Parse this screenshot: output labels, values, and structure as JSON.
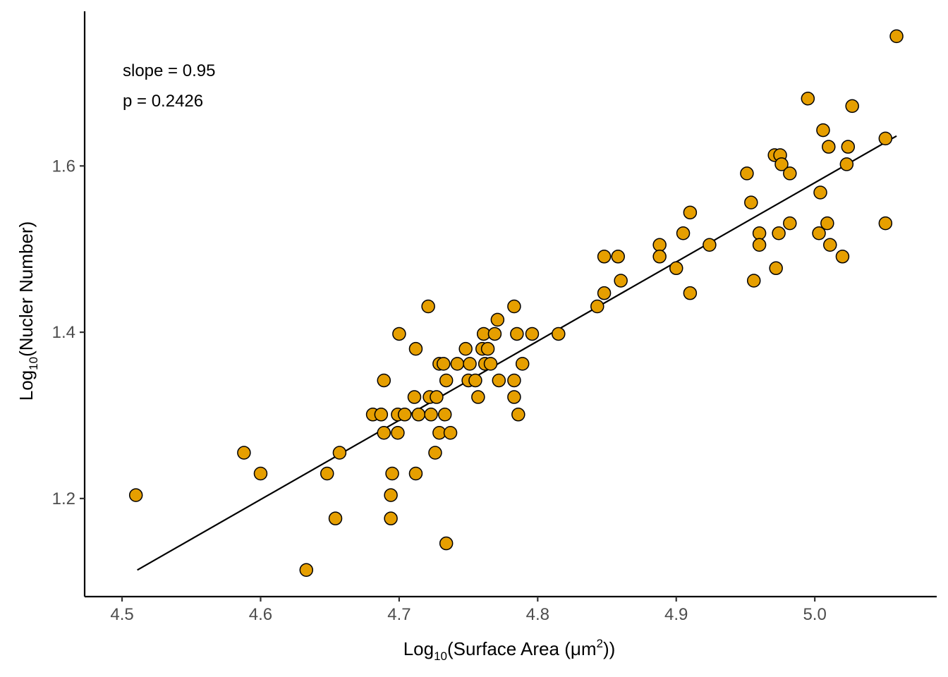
{
  "chart_data": {
    "type": "scatter",
    "title": "",
    "xlabel": {
      "pre": "Log",
      "sub": "10",
      "mid": "(Surface Area (μm",
      "sup": "2",
      "post": "))"
    },
    "ylabel": {
      "pre": "Log",
      "sub": "10",
      "post": "(Nucler Number)"
    },
    "xlim": [
      4.473,
      5.088
    ],
    "ylim": [
      1.082,
      1.786
    ],
    "xticks": [
      4.5,
      4.6,
      4.7,
      4.8,
      4.9,
      5.0
    ],
    "xtick_labels": [
      "4.5",
      "4.6",
      "4.7",
      "4.8",
      "4.9",
      "5.0"
    ],
    "yticks": [
      1.2,
      1.4,
      1.6
    ],
    "ytick_labels": [
      "1.2",
      "1.4",
      "1.6"
    ],
    "grid": false,
    "point_color": "#E69F00",
    "annotations": [
      "slope = 0.95",
      "p = 0.2426"
    ],
    "fit_line": {
      "x": [
        4.511,
        5.059
      ],
      "y": [
        1.114,
        1.636
      ]
    },
    "points": [
      [
        4.51,
        1.204
      ],
      [
        4.588,
        1.255
      ],
      [
        4.6,
        1.23
      ],
      [
        4.633,
        1.114
      ],
      [
        4.648,
        1.23
      ],
      [
        4.654,
        1.176
      ],
      [
        4.657,
        1.255
      ],
      [
        4.681,
        1.301
      ],
      [
        4.687,
        1.301
      ],
      [
        4.689,
        1.342
      ],
      [
        4.689,
        1.279
      ],
      [
        4.694,
        1.204
      ],
      [
        4.694,
        1.176
      ],
      [
        4.695,
        1.23
      ],
      [
        4.699,
        1.279
      ],
      [
        4.699,
        1.301
      ],
      [
        4.7,
        1.398
      ],
      [
        4.704,
        1.301
      ],
      [
        4.711,
        1.322
      ],
      [
        4.712,
        1.38
      ],
      [
        4.712,
        1.23
      ],
      [
        4.714,
        1.301
      ],
      [
        4.721,
        1.431
      ],
      [
        4.722,
        1.322
      ],
      [
        4.723,
        1.301
      ],
      [
        4.726,
        1.255
      ],
      [
        4.727,
        1.322
      ],
      [
        4.729,
        1.362
      ],
      [
        4.729,
        1.279
      ],
      [
        4.732,
        1.362
      ],
      [
        4.733,
        1.301
      ],
      [
        4.734,
        1.342
      ],
      [
        4.734,
        1.146
      ],
      [
        4.737,
        1.279
      ],
      [
        4.742,
        1.362
      ],
      [
        4.748,
        1.38
      ],
      [
        4.75,
        1.342
      ],
      [
        4.751,
        1.362
      ],
      [
        4.755,
        1.342
      ],
      [
        4.757,
        1.322
      ],
      [
        4.76,
        1.38
      ],
      [
        4.761,
        1.398
      ],
      [
        4.762,
        1.362
      ],
      [
        4.764,
        1.38
      ],
      [
        4.766,
        1.362
      ],
      [
        4.769,
        1.398
      ],
      [
        4.771,
        1.415
      ],
      [
        4.772,
        1.342
      ],
      [
        4.783,
        1.431
      ],
      [
        4.783,
        1.342
      ],
      [
        4.783,
        1.322
      ],
      [
        4.785,
        1.398
      ],
      [
        4.786,
        1.301
      ],
      [
        4.789,
        1.362
      ],
      [
        4.796,
        1.398
      ],
      [
        4.815,
        1.398
      ],
      [
        4.843,
        1.431
      ],
      [
        4.848,
        1.491
      ],
      [
        4.848,
        1.447
      ],
      [
        4.858,
        1.491
      ],
      [
        4.86,
        1.462
      ],
      [
        4.888,
        1.505
      ],
      [
        4.888,
        1.491
      ],
      [
        4.9,
        1.477
      ],
      [
        4.905,
        1.519
      ],
      [
        4.91,
        1.544
      ],
      [
        4.91,
        1.447
      ],
      [
        4.924,
        1.505
      ],
      [
        4.951,
        1.591
      ],
      [
        4.954,
        1.556
      ],
      [
        4.956,
        1.462
      ],
      [
        4.96,
        1.519
      ],
      [
        4.96,
        1.505
      ],
      [
        4.971,
        1.613
      ],
      [
        4.972,
        1.477
      ],
      [
        4.974,
        1.519
      ],
      [
        4.975,
        1.613
      ],
      [
        4.976,
        1.602
      ],
      [
        4.982,
        1.591
      ],
      [
        4.982,
        1.531
      ],
      [
        4.995,
        1.681
      ],
      [
        5.003,
        1.519
      ],
      [
        5.004,
        1.568
      ],
      [
        5.006,
        1.643
      ],
      [
        5.009,
        1.531
      ],
      [
        5.01,
        1.623
      ],
      [
        5.011,
        1.505
      ],
      [
        5.02,
        1.491
      ],
      [
        5.023,
        1.602
      ],
      [
        5.024,
        1.623
      ],
      [
        5.027,
        1.672
      ],
      [
        5.051,
        1.633
      ],
      [
        5.051,
        1.531
      ],
      [
        5.059,
        1.756
      ]
    ]
  }
}
